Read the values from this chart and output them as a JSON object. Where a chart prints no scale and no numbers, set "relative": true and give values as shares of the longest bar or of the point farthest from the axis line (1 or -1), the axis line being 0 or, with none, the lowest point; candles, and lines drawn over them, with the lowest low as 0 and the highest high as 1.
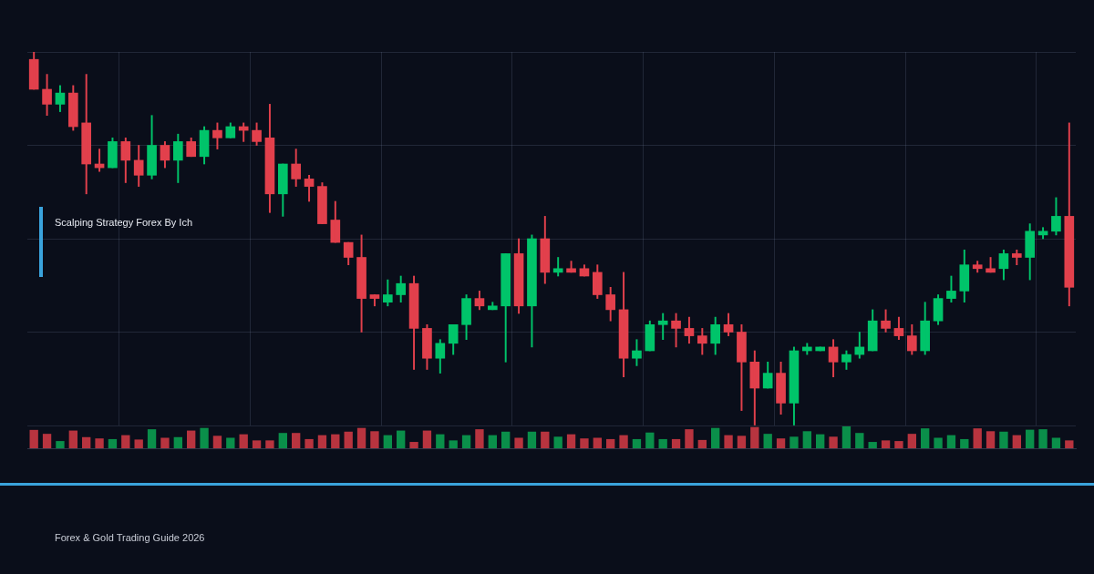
{
  "chart_data": [
    {
      "type": "candlestick",
      "title": "Scalping Strategy Forex By Ich",
      "relative": true,
      "grid": true,
      "annotations": [
        "Forex & Gold Trading Guide 2026"
      ],
      "categories": [
        null,
        null,
        null,
        null,
        null,
        null,
        null,
        null,
        null,
        null,
        null,
        null,
        null,
        null,
        null,
        null,
        null,
        null,
        null,
        null,
        null,
        null,
        null,
        null,
        null,
        null,
        null,
        null,
        null,
        null,
        null,
        null,
        null,
        null,
        null,
        null,
        null,
        null,
        null,
        null,
        null,
        null,
        null,
        null,
        null,
        null,
        null,
        null,
        null,
        null,
        null,
        null,
        null,
        null,
        null,
        null,
        null,
        null,
        null,
        null,
        null,
        null,
        null,
        null,
        null,
        null,
        null,
        null,
        null,
        null,
        null,
        null,
        null,
        null,
        null,
        null,
        null,
        null,
        null,
        null
      ],
      "ohlc": [
        [
          0.98,
          1,
          0.9,
          0.9
        ],
        [
          0.9,
          0.94,
          0.83,
          0.86
        ],
        [
          0.86,
          0.91,
          0.84,
          0.89
        ],
        [
          0.89,
          0.91,
          0.79,
          0.8
        ],
        [
          0.81,
          0.94,
          0.62,
          0.7
        ],
        [
          0.7,
          0.74,
          0.68,
          0.69
        ],
        [
          0.69,
          0.77,
          0.69,
          0.76
        ],
        [
          0.76,
          0.77,
          0.65,
          0.71
        ],
        [
          0.71,
          0.75,
          0.64,
          0.67
        ],
        [
          0.67,
          0.83,
          0.66,
          0.75
        ],
        [
          0.75,
          0.76,
          0.69,
          0.71
        ],
        [
          0.71,
          0.78,
          0.65,
          0.76
        ],
        [
          0.76,
          0.77,
          0.72,
          0.72
        ],
        [
          0.72,
          0.8,
          0.7,
          0.79
        ],
        [
          0.79,
          0.81,
          0.74,
          0.77
        ],
        [
          0.77,
          0.81,
          0.77,
          0.8
        ],
        [
          0.8,
          0.81,
          0.76,
          0.79
        ],
        [
          0.79,
          0.81,
          0.75,
          0.76
        ],
        [
          0.77,
          0.86,
          0.57,
          0.62
        ],
        [
          0.62,
          0.7,
          0.56,
          0.7
        ],
        [
          0.7,
          0.74,
          0.64,
          0.66
        ],
        [
          0.66,
          0.67,
          0.6,
          0.64
        ],
        [
          0.64,
          0.65,
          0.54,
          0.54
        ],
        [
          0.55,
          0.6,
          0.49,
          0.49
        ],
        [
          0.49,
          0.49,
          0.43,
          0.45
        ],
        [
          0.45,
          0.51,
          0.25,
          0.34
        ],
        [
          0.35,
          0.35,
          0.32,
          0.34
        ],
        [
          0.33,
          0.39,
          0.32,
          0.35
        ],
        [
          0.35,
          0.4,
          0.33,
          0.38
        ],
        [
          0.38,
          0.4,
          0.15,
          0.26
        ],
        [
          0.26,
          0.27,
          0.15,
          0.18
        ],
        [
          0.18,
          0.23,
          0.14,
          0.22
        ],
        [
          0.22,
          0.27,
          0.19,
          0.27
        ],
        [
          0.27,
          0.35,
          0.23,
          0.34
        ],
        [
          0.34,
          0.36,
          0.31,
          0.32
        ],
        [
          0.31,
          0.33,
          0.31,
          0.32
        ],
        [
          0.32,
          0.46,
          0.17,
          0.46
        ],
        [
          0.46,
          0.5,
          0.3,
          0.32
        ],
        [
          0.32,
          0.51,
          0.21,
          0.5
        ],
        [
          0.5,
          0.56,
          0.38,
          0.41
        ],
        [
          0.41,
          0.45,
          0.4,
          0.42
        ],
        [
          0.42,
          0.44,
          0.41,
          0.41
        ],
        [
          0.42,
          0.43,
          0.4,
          0.4
        ],
        [
          0.41,
          0.43,
          0.34,
          0.35
        ],
        [
          0.35,
          0.37,
          0.28,
          0.31
        ],
        [
          0.31,
          0.41,
          0.13,
          0.18
        ],
        [
          0.18,
          0.23,
          0.16,
          0.2
        ],
        [
          0.2,
          0.28,
          0.2,
          0.27
        ],
        [
          0.27,
          0.3,
          0.23,
          0.28
        ],
        [
          0.28,
          0.3,
          0.21,
          0.26
        ],
        [
          0.26,
          0.29,
          0.22,
          0.24
        ],
        [
          0.24,
          0.26,
          0.19,
          0.22
        ],
        [
          0.22,
          0.29,
          0.19,
          0.27
        ],
        [
          0.27,
          0.3,
          0.24,
          0.25
        ],
        [
          0.25,
          0.27,
          0.04,
          0.17
        ],
        [
          0.17,
          0.2,
          0,
          0.1
        ],
        [
          0.1,
          0.17,
          0.1,
          0.14
        ],
        [
          0.14,
          0.17,
          0.03,
          0.06
        ],
        [
          0.06,
          0.21,
          0,
          0.2
        ],
        [
          0.2,
          0.22,
          0.19,
          0.21
        ],
        [
          0.2,
          0.21,
          0.2,
          0.21
        ],
        [
          0.21,
          0.23,
          0.13,
          0.17
        ],
        [
          0.17,
          0.2,
          0.15,
          0.19
        ],
        [
          0.19,
          0.25,
          0.18,
          0.21
        ],
        [
          0.2,
          0.31,
          0.2,
          0.28
        ],
        [
          0.28,
          0.31,
          0.25,
          0.26
        ],
        [
          0.26,
          0.29,
          0.23,
          0.24
        ],
        [
          0.24,
          0.27,
          0.19,
          0.2
        ],
        [
          0.2,
          0.33,
          0.19,
          0.28
        ],
        [
          0.28,
          0.35,
          0.27,
          0.34
        ],
        [
          0.34,
          0.4,
          0.33,
          0.36
        ],
        [
          0.36,
          0.47,
          0.33,
          0.43
        ],
        [
          0.43,
          0.44,
          0.41,
          0.42
        ],
        [
          0.42,
          0.45,
          0.41,
          0.41
        ],
        [
          0.42,
          0.47,
          0.39,
          0.46
        ],
        [
          0.46,
          0.47,
          0.43,
          0.45
        ],
        [
          0.45,
          0.54,
          0.39,
          0.52
        ],
        [
          0.51,
          0.53,
          0.5,
          0.52
        ],
        [
          0.52,
          0.61,
          0.51,
          0.56
        ],
        [
          0.56,
          0.81,
          0.32,
          0.37
        ]
      ],
      "colors": [
        "#e2404c",
        "#e2404c",
        "#00c46a",
        "#e2404c",
        "#e2404c",
        "#e2404c",
        "#00c46a",
        "#e2404c",
        "#e2404c",
        "#00c46a",
        "#e2404c",
        "#00c46a",
        "#e2404c",
        "#00c46a",
        "#e2404c",
        "#00c46a",
        "#e2404c",
        "#e2404c",
        "#e2404c",
        "#00c46a",
        "#e2404c",
        "#e2404c",
        "#e2404c",
        "#e2404c",
        "#e2404c",
        "#e2404c",
        "#e2404c",
        "#00c46a",
        "#00c46a",
        "#e2404c",
        "#e2404c",
        "#00c46a",
        "#00c46a",
        "#00c46a",
        "#e2404c",
        "#00c46a",
        "#00c46a",
        "#e2404c",
        "#00c46a",
        "#e2404c",
        "#00c46a",
        "#e2404c",
        "#e2404c",
        "#e2404c",
        "#e2404c",
        "#e2404c",
        "#00c46a",
        "#00c46a",
        "#00c46a",
        "#e2404c",
        "#e2404c",
        "#e2404c",
        "#00c46a",
        "#e2404c",
        "#e2404c",
        "#e2404c",
        "#00c46a",
        "#e2404c",
        "#00c46a",
        "#00c46a",
        "#00c46a",
        "#e2404c",
        "#00c46a",
        "#00c46a",
        "#00c46a",
        "#e2404c",
        "#e2404c",
        "#e2404c",
        "#00c46a",
        "#00c46a",
        "#00c46a",
        "#00c46a",
        "#e2404c",
        "#e2404c",
        "#00c46a",
        "#e2404c",
        "#00c46a",
        "#00c46a",
        "#00c46a",
        "#e2404c"
      ]
    },
    {
      "type": "bar",
      "relative": true,
      "categories": [
        null,
        null,
        null,
        null,
        null,
        null,
        null,
        null,
        null,
        null,
        null,
        null,
        null,
        null,
        null,
        null,
        null,
        null,
        null,
        null,
        null,
        null,
        null,
        null,
        null,
        null,
        null,
        null,
        null,
        null,
        null,
        null,
        null,
        null,
        null,
        null,
        null,
        null,
        null,
        null,
        null,
        null,
        null,
        null,
        null,
        null,
        null,
        null,
        null,
        null,
        null,
        null,
        null,
        null,
        null,
        null,
        null,
        null,
        null,
        null,
        null,
        null,
        null,
        null,
        null,
        null,
        null,
        null,
        null,
        null,
        null,
        null,
        null,
        null,
        null,
        null,
        null,
        null,
        null,
        null
      ],
      "values": [
        0.84,
        0.66,
        0.33,
        0.81,
        0.51,
        0.45,
        0.42,
        0.6,
        0.4,
        0.87,
        0.48,
        0.51,
        0.81,
        0.93,
        0.57,
        0.48,
        0.64,
        0.36,
        0.36,
        0.7,
        0.7,
        0.42,
        0.6,
        0.64,
        0.76,
        0.93,
        0.78,
        0.6,
        0.81,
        0.29,
        0.81,
        0.64,
        0.36,
        0.6,
        0.87,
        0.6,
        0.76,
        0.48,
        0.76,
        0.76,
        0.53,
        0.64,
        0.45,
        0.48,
        0.42,
        0.6,
        0.42,
        0.72,
        0.42,
        0.42,
        0.87,
        0.38,
        0.93,
        0.6,
        0.57,
        0.97,
        0.66,
        0.45,
        0.53,
        0.78,
        0.64,
        0.53,
        1,
        0.7,
        0.29,
        0.36,
        0.33,
        0.66,
        0.91,
        0.48,
        0.6,
        0.42,
        0.91,
        0.78,
        0.76,
        0.6,
        0.85,
        0.87,
        0.48,
        0.36
      ],
      "colors": [
        "#b8343f",
        "#b8343f",
        "#0a8f4a",
        "#b8343f",
        "#b8343f",
        "#b8343f",
        "#0a8f4a",
        "#b8343f",
        "#b8343f",
        "#0a8f4a",
        "#b8343f",
        "#0a8f4a",
        "#b8343f",
        "#0a8f4a",
        "#b8343f",
        "#0a8f4a",
        "#b8343f",
        "#b8343f",
        "#b8343f",
        "#0a8f4a",
        "#b8343f",
        "#b8343f",
        "#b8343f",
        "#b8343f",
        "#b8343f",
        "#b8343f",
        "#b8343f",
        "#0a8f4a",
        "#0a8f4a",
        "#b8343f",
        "#b8343f",
        "#0a8f4a",
        "#0a8f4a",
        "#0a8f4a",
        "#b8343f",
        "#0a8f4a",
        "#0a8f4a",
        "#b8343f",
        "#0a8f4a",
        "#b8343f",
        "#0a8f4a",
        "#b8343f",
        "#b8343f",
        "#b8343f",
        "#b8343f",
        "#b8343f",
        "#0a8f4a",
        "#0a8f4a",
        "#0a8f4a",
        "#b8343f",
        "#b8343f",
        "#b8343f",
        "#0a8f4a",
        "#b8343f",
        "#b8343f",
        "#b8343f",
        "#0a8f4a",
        "#b8343f",
        "#0a8f4a",
        "#0a8f4a",
        "#0a8f4a",
        "#b8343f",
        "#0a8f4a",
        "#0a8f4a",
        "#0a8f4a",
        "#b8343f",
        "#b8343f",
        "#b8343f",
        "#0a8f4a",
        "#0a8f4a",
        "#0a8f4a",
        "#0a8f4a",
        "#b8343f",
        "#b8343f",
        "#0a8f4a",
        "#b8343f",
        "#0a8f4a",
        "#0a8f4a",
        "#0a8f4a",
        "#b8343f"
      ]
    }
  ]
}
